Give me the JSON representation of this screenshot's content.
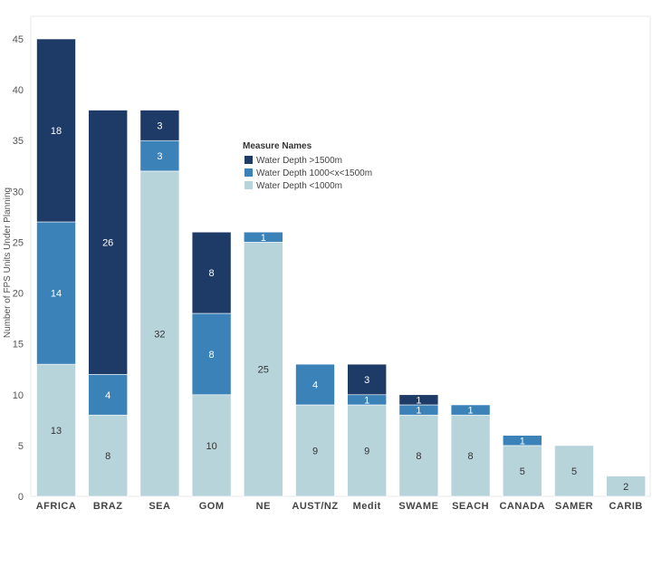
{
  "chart_data": {
    "type": "bar",
    "stacked": true,
    "categories": [
      "AFRICA",
      "BRAZ",
      "SEA",
      "GOM",
      "NE",
      "AUST/NZ",
      "Medit",
      "SWAME",
      "SEACH",
      "CANADA",
      "SAMER",
      "CARIB"
    ],
    "series": [
      {
        "name": "Water Depth <1000m",
        "color": "#b8d4db",
        "values": [
          13,
          8,
          32,
          10,
          25,
          9,
          9,
          8,
          8,
          5,
          5,
          2
        ]
      },
      {
        "name": "Water Depth 1000<x<1500m",
        "color": "#3a82b8",
        "values": [
          14,
          4,
          3,
          8,
          1,
          4,
          1,
          1,
          1,
          1,
          0,
          0
        ]
      },
      {
        "name": "Water Depth >1500m",
        "color": "#1e3a66",
        "values": [
          18,
          26,
          3,
          8,
          0,
          0,
          3,
          1,
          0,
          0,
          0,
          0
        ]
      }
    ],
    "ylabel": "Number of FPS Units Under Planning",
    "xlabel": "",
    "ylim": [
      0,
      45
    ],
    "yticks": [
      0,
      5,
      10,
      15,
      20,
      25,
      30,
      35,
      40,
      45
    ],
    "grid": false,
    "legend": {
      "title": "Measure Names",
      "placement": "top-center",
      "entries": [
        "Water Depth >1500m",
        "Water Depth 1000<x<1500m",
        "Water Depth <1000m"
      ]
    }
  }
}
